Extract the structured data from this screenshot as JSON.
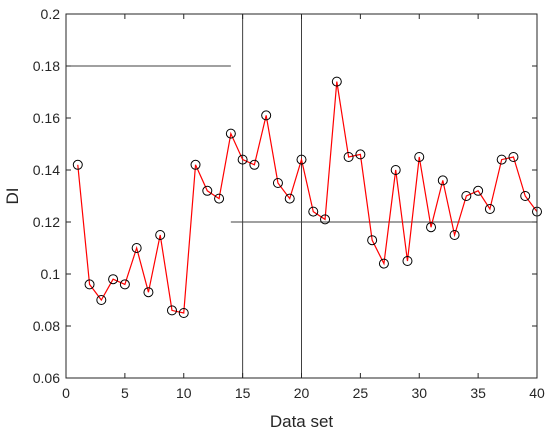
{
  "chart_data": {
    "type": "line",
    "title": "",
    "xlabel": "Data set",
    "ylabel": "DI",
    "xlim": [
      0,
      40
    ],
    "ylim": [
      0.06,
      0.2
    ],
    "xticks": [
      0,
      5,
      10,
      15,
      20,
      25,
      30,
      35,
      40
    ],
    "xtick_labels": [
      "0",
      "5",
      "10",
      "15",
      "20",
      "25",
      "30",
      "35",
      "40"
    ],
    "yticks": [
      0.06,
      0.08,
      0.1,
      0.12,
      0.14,
      0.16,
      0.18,
      0.2
    ],
    "ytick_labels": [
      "0.06",
      "0.08",
      "0.1",
      "0.12",
      "0.14",
      "0.16",
      "0.18",
      "0.2"
    ],
    "grid": false,
    "series": [
      {
        "line_color": "#ff0000",
        "marker": "open-circle",
        "marker_color": "#000000",
        "x": [
          1,
          2,
          3,
          4,
          5,
          6,
          7,
          8,
          9,
          10,
          11,
          12,
          13,
          14,
          15,
          16,
          17,
          18,
          19,
          20,
          21,
          22,
          23,
          24,
          25,
          26,
          27,
          28,
          29,
          30,
          31,
          32,
          33,
          34,
          35,
          36,
          37,
          38,
          39,
          40
        ],
        "y": [
          0.142,
          0.096,
          0.09,
          0.098,
          0.096,
          0.11,
          0.093,
          0.115,
          0.086,
          0.085,
          0.142,
          0.132,
          0.129,
          0.154,
          0.144,
          0.142,
          0.161,
          0.135,
          0.129,
          0.144,
          0.124,
          0.121,
          0.174,
          0.145,
          0.146,
          0.113,
          0.104,
          0.14,
          0.105,
          0.145,
          0.118,
          0.136,
          0.115,
          0.13,
          0.132,
          0.125,
          0.144,
          0.145,
          0.13,
          0.124
        ]
      }
    ],
    "reference_lines": [
      {
        "orientation": "horizontal",
        "y": 0.18,
        "x_from": 0,
        "x_to": 14,
        "color": "#404040"
      },
      {
        "orientation": "horizontal",
        "y": 0.12,
        "x_from": 14,
        "x_to": 40,
        "color": "#404040"
      },
      {
        "orientation": "vertical",
        "x": 15,
        "color": "#404040"
      },
      {
        "orientation": "vertical",
        "x": 20,
        "color": "#404040"
      }
    ]
  }
}
